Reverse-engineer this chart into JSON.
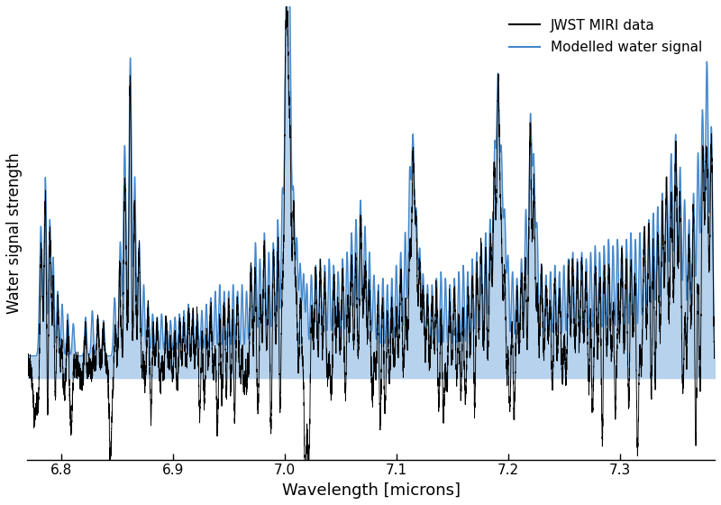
{
  "xlabel": "Wavelength [microns]",
  "ylabel": "Water signal strength",
  "xlim": [
    6.77,
    7.385
  ],
  "ylim": [
    -0.25,
    1.15
  ],
  "legend_labels": [
    "JWST MIRI data",
    "Modelled water signal"
  ],
  "line_color_black": "#000000",
  "line_color_blue": "#4488CC",
  "fill_color_blue": "#7AAEDD",
  "fill_alpha": 0.55,
  "background_color": "#ffffff",
  "xticks": [
    6.8,
    6.9,
    7.0,
    7.1,
    7.2,
    7.3
  ],
  "seed": 42,
  "baseline": 0.07,
  "blue_lw": 1.0,
  "black_lw": 0.65
}
